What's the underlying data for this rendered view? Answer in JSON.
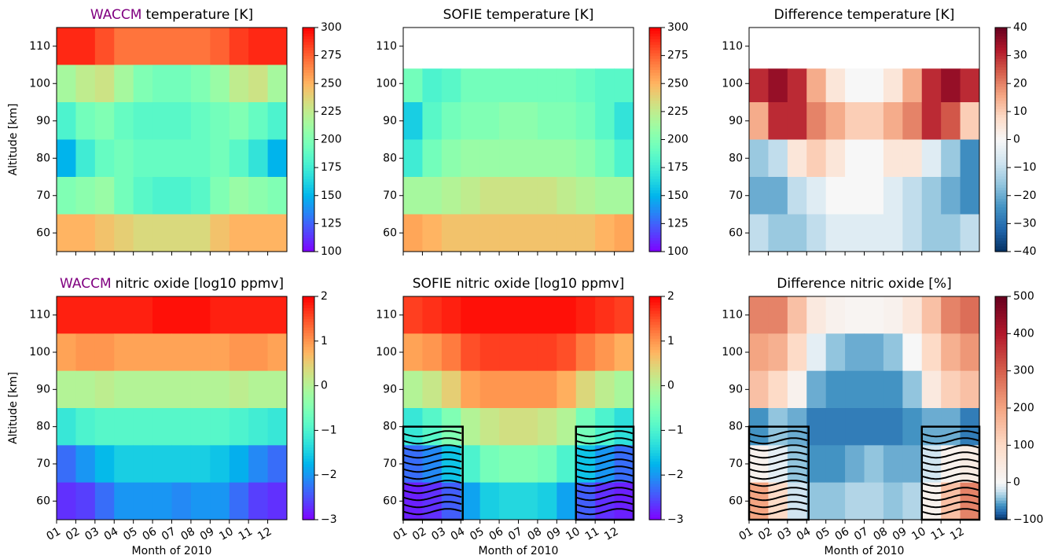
{
  "chart_data": [
    {
      "type": "heatmap",
      "title_highlight": "WACCM",
      "title_highlight_color": "#800080",
      "title": "temperature [K]",
      "ylabel": "Altitude [km]",
      "x_bins": [
        1,
        2,
        3,
        4,
        5,
        6,
        7,
        8,
        9,
        10,
        11,
        12,
        13
      ],
      "y_bins": [
        115,
        105,
        95,
        85,
        75,
        65,
        55
      ],
      "xlim": [
        1,
        13
      ],
      "ylim": [
        55,
        115
      ],
      "xticks": [
        1,
        2,
        3,
        4,
        5,
        6,
        7,
        8,
        9,
        10,
        11,
        12
      ],
      "yticks": [
        60,
        70,
        80,
        90,
        100,
        110
      ],
      "colormap": "rainbow",
      "clim": [
        100,
        300
      ],
      "cticks": [
        100,
        125,
        150,
        175,
        200,
        225,
        250,
        275,
        300
      ],
      "z": [
        [
          290,
          290,
          280,
          270,
          270,
          270,
          270,
          270,
          275,
          285,
          290,
          290
        ],
        [
          215,
          225,
          230,
          215,
          200,
          195,
          195,
          200,
          210,
          225,
          230,
          215
        ],
        [
          180,
          195,
          200,
          190,
          185,
          185,
          185,
          190,
          195,
          200,
          190,
          180
        ],
        [
          150,
          175,
          190,
          195,
          190,
          190,
          190,
          190,
          195,
          185,
          170,
          150
        ],
        [
          200,
          205,
          210,
          195,
          185,
          180,
          180,
          185,
          200,
          210,
          205,
          200
        ],
        [
          250,
          250,
          245,
          240,
          235,
          235,
          235,
          235,
          245,
          250,
          250,
          250
        ]
      ]
    },
    {
      "type": "heatmap",
      "title": "SOFIE temperature [K]",
      "x_bins": [
        1,
        2,
        3,
        4,
        5,
        6,
        7,
        8,
        9,
        10,
        11,
        12,
        13
      ],
      "y_bins": [
        115,
        104,
        95,
        85,
        75,
        65,
        55
      ],
      "xlim": [
        1,
        13
      ],
      "ylim": [
        55,
        115
      ],
      "xticks": [
        1,
        2,
        3,
        4,
        5,
        6,
        7,
        8,
        9,
        10,
        11,
        12
      ],
      "yticks": [
        60,
        70,
        80,
        90,
        100,
        110
      ],
      "colormap": "rainbow",
      "clim": [
        100,
        300
      ],
      "cticks": [
        100,
        125,
        150,
        175,
        200,
        225,
        250,
        275,
        300
      ],
      "z": [
        [
          null,
          null,
          null,
          null,
          null,
          null,
          null,
          null,
          null,
          null,
          null,
          null
        ],
        [
          195,
          180,
          185,
          195,
          195,
          195,
          195,
          195,
          195,
          190,
          185,
          185
        ],
        [
          160,
          185,
          195,
          200,
          200,
          205,
          205,
          200,
          200,
          195,
          185,
          170
        ],
        [
          175,
          195,
          205,
          210,
          210,
          210,
          210,
          210,
          210,
          205,
          195,
          180
        ],
        [
          215,
          215,
          220,
          225,
          230,
          230,
          230,
          230,
          225,
          220,
          215,
          215
        ],
        [
          255,
          250,
          245,
          245,
          245,
          245,
          245,
          245,
          245,
          245,
          250,
          255
        ]
      ]
    },
    {
      "type": "heatmap",
      "title": "Difference temperature [K]",
      "x_bins": [
        1,
        2,
        3,
        4,
        5,
        6,
        7,
        8,
        9,
        10,
        11,
        12,
        13
      ],
      "y_bins": [
        115,
        104,
        95,
        85,
        75,
        65,
        55
      ],
      "xlim": [
        1,
        13
      ],
      "ylim": [
        55,
        115
      ],
      "xticks": [
        1,
        2,
        3,
        4,
        5,
        6,
        7,
        8,
        9,
        10,
        11,
        12
      ],
      "yticks": [
        60,
        70,
        80,
        90,
        100,
        110
      ],
      "colormap": "RdBu_r",
      "colormap_center": 0,
      "clim": [
        -40,
        40
      ],
      "cticks": [
        {
          "value": -40,
          "label": "−40"
        },
        {
          "value": -30,
          "label": "−30"
        },
        {
          "value": -20,
          "label": "−20"
        },
        {
          "value": -10,
          "label": "−10"
        },
        0,
        10,
        20,
        30,
        40
      ],
      "z": [
        [
          null,
          null,
          null,
          null,
          null,
          null,
          null,
          null,
          null,
          null,
          null,
          null
        ],
        [
          30,
          35,
          30,
          15,
          5,
          0,
          0,
          5,
          15,
          30,
          35,
          30
        ],
        [
          15,
          30,
          30,
          20,
          15,
          10,
          10,
          15,
          20,
          30,
          25,
          10
        ],
        [
          -15,
          -10,
          5,
          10,
          5,
          0,
          0,
          5,
          5,
          -5,
          -15,
          -25
        ],
        [
          -20,
          -20,
          -10,
          -5,
          0,
          0,
          0,
          -5,
          -10,
          -15,
          -20,
          -25
        ],
        [
          -10,
          -15,
          -15,
          -10,
          -5,
          -5,
          -5,
          -5,
          -10,
          -15,
          -15,
          -10
        ]
      ]
    },
    {
      "type": "heatmap",
      "title_highlight": "WACCM",
      "title_highlight_color": "#800080",
      "title": "nitric oxide [log10 ppmv]",
      "ylabel": "Altitude [km]",
      "xlabel": "Month of 2010",
      "x_bins": [
        1,
        2,
        3,
        4,
        5,
        6,
        7,
        8,
        9,
        10,
        11,
        12,
        13
      ],
      "y_bins": [
        115,
        105,
        95,
        85,
        75,
        65,
        55
      ],
      "xlim": [
        1,
        13
      ],
      "ylim": [
        55,
        115
      ],
      "xticks": [
        {
          "value": 1,
          "label": "01"
        },
        {
          "value": 2,
          "label": "02"
        },
        {
          "value": 3,
          "label": "03"
        },
        {
          "value": 4,
          "label": "04"
        },
        {
          "value": 5,
          "label": "05"
        },
        {
          "value": 6,
          "label": "06"
        },
        {
          "value": 7,
          "label": "07"
        },
        {
          "value": 8,
          "label": "08"
        },
        {
          "value": 9,
          "label": "09"
        },
        10,
        11,
        12
      ],
      "yticks": [
        60,
        70,
        80,
        90,
        100,
        110
      ],
      "colormap": "rainbow",
      "clim": [
        -3,
        2
      ],
      "cticks": [
        {
          "value": -3,
          "label": "−3"
        },
        {
          "value": -2,
          "label": "−2"
        },
        {
          "value": -1,
          "label": "−1"
        },
        0,
        1,
        2
      ],
      "z": [
        [
          1.8,
          1.8,
          1.8,
          1.8,
          1.8,
          1.9,
          1.9,
          1.9,
          1.8,
          1.8,
          1.8,
          1.8
        ],
        [
          0.9,
          1.0,
          1.0,
          0.9,
          0.9,
          0.9,
          0.9,
          0.9,
          0.9,
          1.0,
          1.0,
          0.9
        ],
        [
          0.0,
          0.0,
          0.1,
          0.0,
          0.0,
          0.0,
          0.0,
          0.0,
          0.0,
          0.1,
          0.0,
          0.0
        ],
        [
          -1.2,
          -1.0,
          -0.9,
          -0.9,
          -0.9,
          -0.9,
          -0.9,
          -0.9,
          -0.9,
          -1.0,
          -1.1,
          -1.2
        ],
        [
          -2.3,
          -2.0,
          -1.7,
          -1.5,
          -1.5,
          -1.5,
          -1.5,
          -1.5,
          -1.6,
          -1.8,
          -2.1,
          -2.3
        ],
        [
          -2.7,
          -2.6,
          -2.3,
          -2.0,
          -2.0,
          -2.0,
          -2.1,
          -2.0,
          -2.0,
          -2.3,
          -2.6,
          -2.7
        ]
      ]
    },
    {
      "type": "heatmap",
      "title": "SOFIE nitric oxide [log10 ppmv]",
      "xlabel": "Month of 2010",
      "x_bins": [
        1,
        2,
        3,
        4,
        5,
        6,
        7,
        8,
        9,
        10,
        11,
        12,
        13
      ],
      "y_bins": [
        115,
        105,
        95,
        85,
        75,
        65,
        55
      ],
      "xlim": [
        1,
        13
      ],
      "ylim": [
        55,
        115
      ],
      "xticks": [
        {
          "value": 1,
          "label": "01"
        },
        {
          "value": 2,
          "label": "02"
        },
        {
          "value": 3,
          "label": "03"
        },
        {
          "value": 4,
          "label": "04"
        },
        {
          "value": 5,
          "label": "05"
        },
        {
          "value": 6,
          "label": "06"
        },
        {
          "value": 7,
          "label": "07"
        },
        {
          "value": 8,
          "label": "08"
        },
        {
          "value": 9,
          "label": "09"
        },
        10,
        11,
        12
      ],
      "yticks": [
        60,
        70,
        80,
        90,
        100,
        110
      ],
      "colormap": "rainbow",
      "clim": [
        -3,
        2
      ],
      "cticks": [
        {
          "value": -3,
          "label": "−3"
        },
        {
          "value": -2,
          "label": "−2"
        },
        {
          "value": -1,
          "label": "−1"
        },
        0,
        1,
        2
      ],
      "hatched_regions": [
        {
          "x": [
            1,
            4.1
          ],
          "y": [
            55,
            80
          ]
        },
        {
          "x": [
            10,
            13
          ],
          "y": [
            55,
            80
          ]
        }
      ],
      "z": [
        [
          1.6,
          1.7,
          1.8,
          1.9,
          1.9,
          1.9,
          1.9,
          1.9,
          1.9,
          1.8,
          1.7,
          1.6
        ],
        [
          0.9,
          1.0,
          1.2,
          1.5,
          1.6,
          1.6,
          1.6,
          1.6,
          1.5,
          1.2,
          1.0,
          0.8
        ],
        [
          0.0,
          0.2,
          0.5,
          0.9,
          1.0,
          1.0,
          1.0,
          1.0,
          0.8,
          0.4,
          0.1,
          -0.1
        ],
        [
          -1.2,
          -0.9,
          -0.5,
          0.0,
          0.2,
          0.3,
          0.3,
          0.2,
          0.0,
          -0.6,
          -1.0,
          -1.3
        ],
        [
          -2.3,
          -2.1,
          -1.6,
          -1.0,
          -0.6,
          -0.5,
          -0.5,
          -0.6,
          -1.0,
          -1.6,
          -2.0,
          -2.3
        ],
        [
          -2.8,
          -2.7,
          -2.4,
          -1.9,
          -1.5,
          -1.4,
          -1.4,
          -1.5,
          -1.9,
          -2.4,
          -2.7,
          -2.8
        ]
      ]
    },
    {
      "type": "heatmap",
      "title": "Difference nitric oxide [%]",
      "xlabel": "Month of 2010",
      "x_bins": [
        1,
        2,
        3,
        4,
        5,
        6,
        7,
        8,
        9,
        10,
        11,
        12,
        13
      ],
      "y_bins": [
        115,
        105,
        95,
        85,
        75,
        65,
        55
      ],
      "xlim": [
        1,
        13
      ],
      "ylim": [
        55,
        115
      ],
      "xticks": [
        {
          "value": 1,
          "label": "01"
        },
        {
          "value": 2,
          "label": "02"
        },
        {
          "value": 3,
          "label": "03"
        },
        {
          "value": 4,
          "label": "04"
        },
        {
          "value": 5,
          "label": "05"
        },
        {
          "value": 6,
          "label": "06"
        },
        {
          "value": 7,
          "label": "07"
        },
        {
          "value": 8,
          "label": "08"
        },
        {
          "value": 9,
          "label": "09"
        },
        10,
        11,
        12
      ],
      "yticks": [
        60,
        70,
        80,
        90,
        100,
        110
      ],
      "colormap": "RdBu_r",
      "colormap_center": 0,
      "clim": [
        -100,
        500
      ],
      "cticks": [
        {
          "value": -100,
          "label": "−100"
        },
        0,
        100,
        200,
        300,
        400,
        500
      ],
      "hatched_regions": [
        {
          "x": [
            1,
            4.1
          ],
          "y": [
            55,
            80
          ]
        },
        {
          "x": [
            10,
            13
          ],
          "y": [
            55,
            80
          ]
        }
      ],
      "z": [
        [
          250,
          250,
          150,
          50,
          20,
          10,
          10,
          20,
          60,
          150,
          250,
          280
        ],
        [
          200,
          180,
          100,
          -10,
          -40,
          -50,
          -50,
          -40,
          0,
          100,
          180,
          220
        ],
        [
          150,
          100,
          20,
          -50,
          -60,
          -60,
          -60,
          -60,
          -40,
          50,
          120,
          150
        ],
        [
          -60,
          -40,
          -50,
          -70,
          -70,
          -70,
          -70,
          -70,
          -60,
          -50,
          -50,
          -70
        ],
        [
          20,
          -10,
          -40,
          -60,
          -60,
          -50,
          -40,
          -50,
          -50,
          -20,
          20,
          40
        ],
        [
          200,
          100,
          -20,
          -40,
          -40,
          -30,
          -30,
          -40,
          -30,
          20,
          150,
          250
        ]
      ]
    }
  ]
}
